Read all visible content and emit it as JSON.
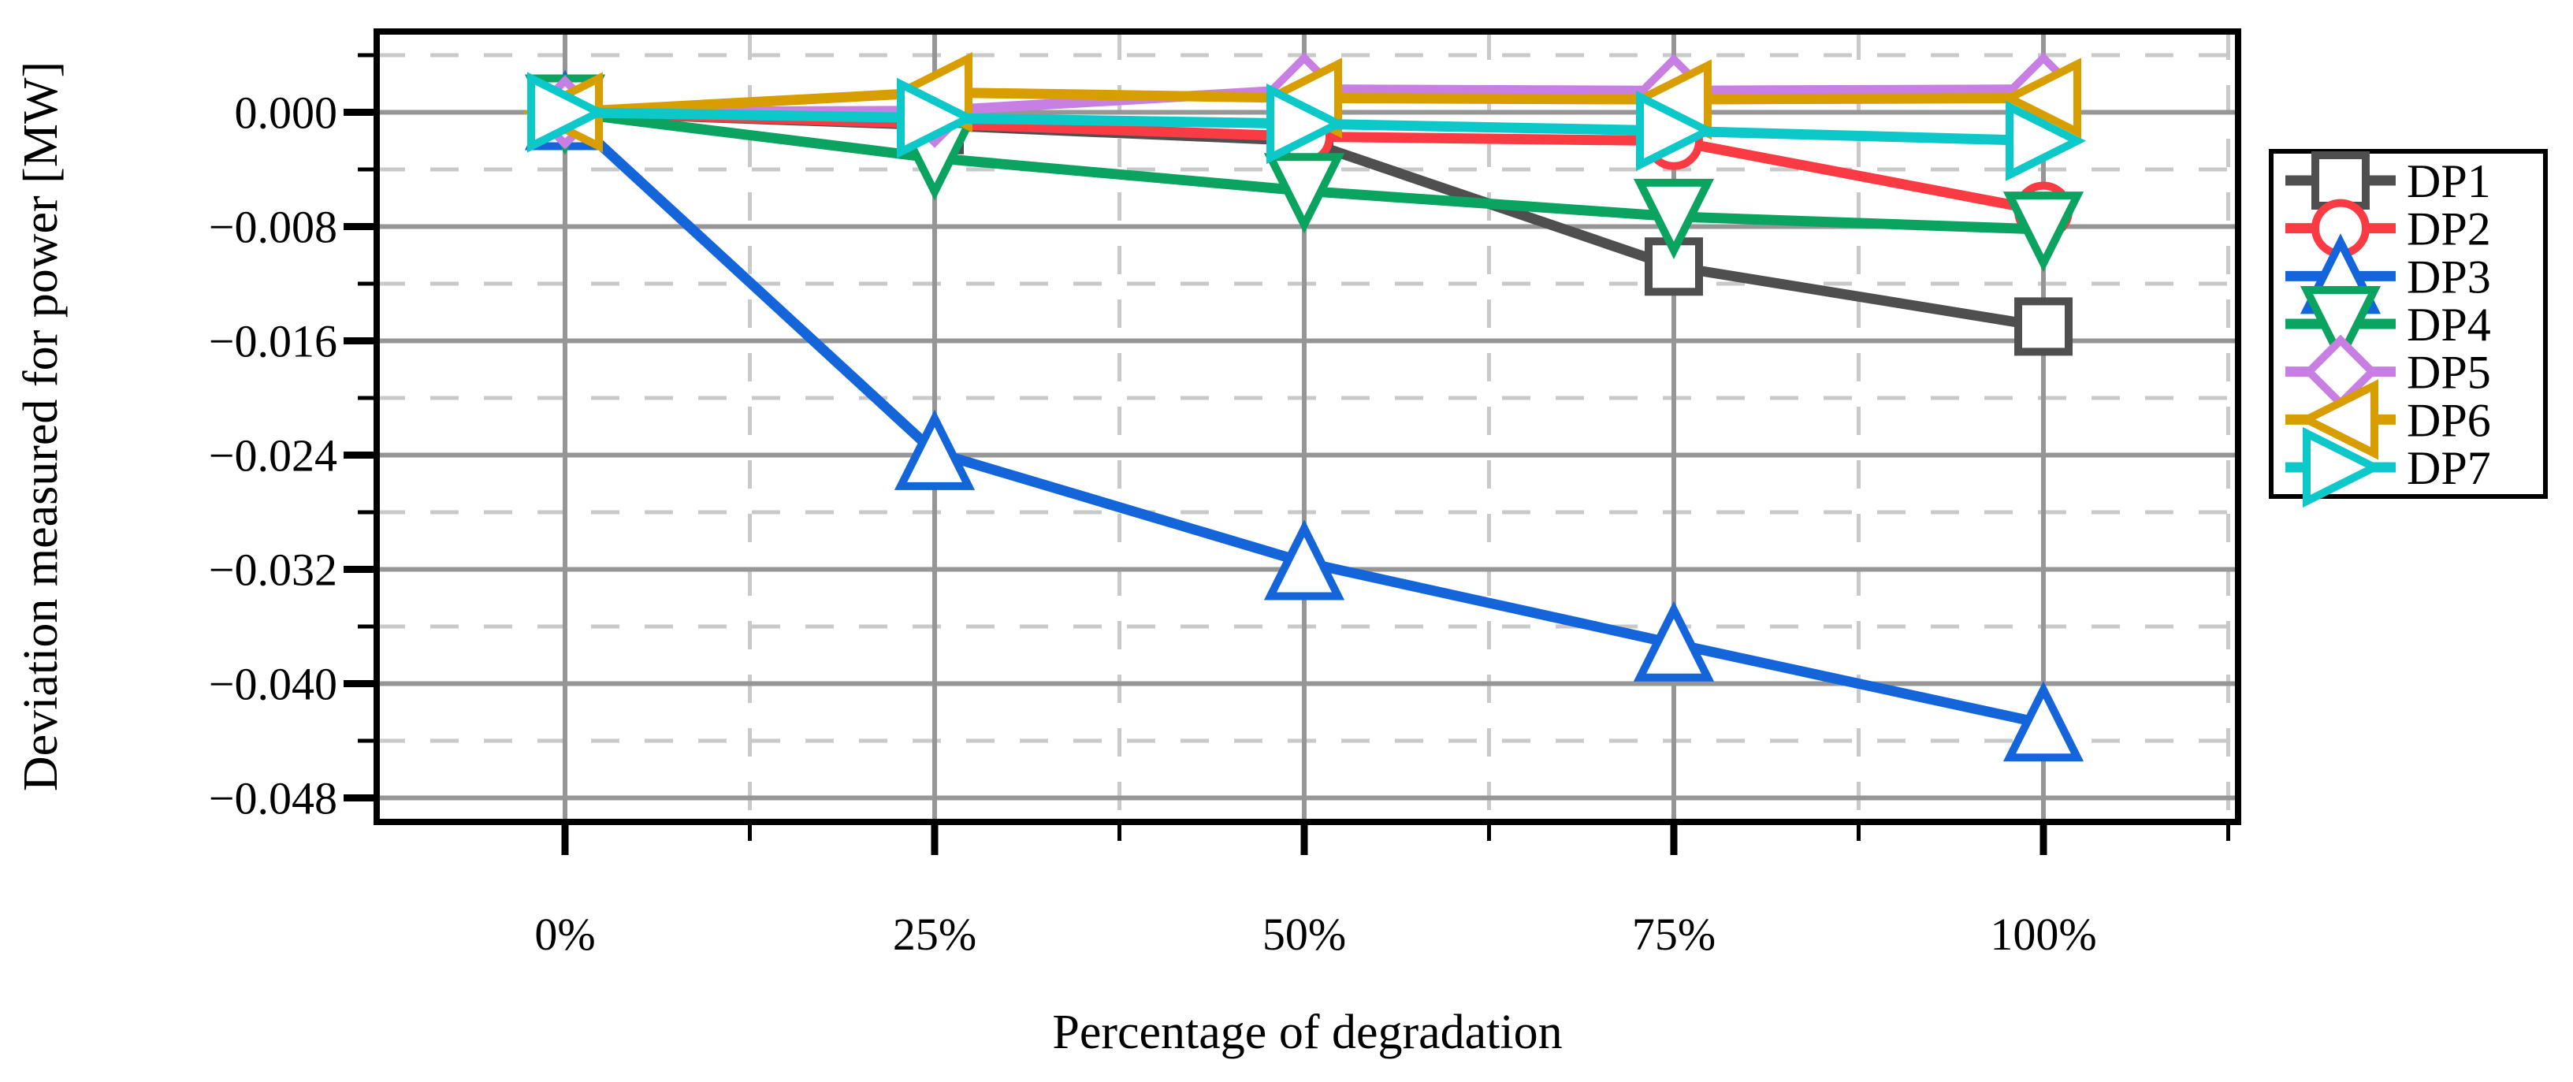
{
  "figure": {
    "y_axis_label": "Deviation measured for power [MW]",
    "x_axis_label": "Percentage of degradation"
  },
  "chart_data": {
    "type": "line",
    "title": "",
    "xlabel": "Percentage of degradation",
    "ylabel": "Deviation measured for power [MW]",
    "x_tick_labels": [
      "0%",
      "25%",
      "50%",
      "75%",
      "100%"
    ],
    "x_values": [
      0,
      25,
      50,
      75,
      100
    ],
    "y_tick_labels": [
      "0.000",
      "−0.008",
      "−0.016",
      "−0.024",
      "−0.032",
      "−0.040",
      "−0.048"
    ],
    "y_tick_values": [
      0,
      -0.008,
      -0.016,
      -0.024,
      -0.032,
      -0.04,
      -0.048
    ],
    "xlim_percent": [
      -12.7,
      113.2
    ],
    "ylim": [
      -0.0497,
      0.0057
    ],
    "grid": {
      "major": "solid",
      "minor": "dashed",
      "minor_x_step_percent": 12.5,
      "minor_y_step": 0.004
    },
    "legend_position": "outside-right",
    "colors": {
      "major_grid": "#969696",
      "minor_grid": "#c9c9c9",
      "axes": "#000000"
    },
    "series": [
      {
        "name": "DP1",
        "color": "#4f4f4f",
        "marker": "square",
        "values": [
          0,
          -0.0009,
          -0.002,
          -0.0108,
          -0.015
        ]
      },
      {
        "name": "DP2",
        "color": "#fb3b43",
        "marker": "circle",
        "values": [
          0,
          -0.0008,
          -0.0017,
          -0.002,
          -0.0069
        ]
      },
      {
        "name": "DP3",
        "color": "#1465d9",
        "marker": "triangle-up",
        "values": [
          0,
          -0.0238,
          -0.0315,
          -0.0372,
          -0.0428
        ]
      },
      {
        "name": "DP4",
        "color": "#0aa360",
        "marker": "triangle-down",
        "values": [
          0,
          -0.0032,
          -0.0055,
          -0.0073,
          -0.0082
        ]
      },
      {
        "name": "DP5",
        "color": "#c77fe3",
        "marker": "diamond",
        "values": [
          0,
          0.0001,
          0.0016,
          0.0015,
          0.0016
        ]
      },
      {
        "name": "DP6",
        "color": "#d89e00",
        "marker": "triangle-left",
        "values": [
          0,
          0.0014,
          0.001,
          0.0009,
          0.001
        ]
      },
      {
        "name": "DP7",
        "color": "#0cc8c8",
        "marker": "triangle-right",
        "values": [
          0,
          -0.0004,
          -0.0008,
          -0.0013,
          -0.002
        ]
      }
    ]
  }
}
